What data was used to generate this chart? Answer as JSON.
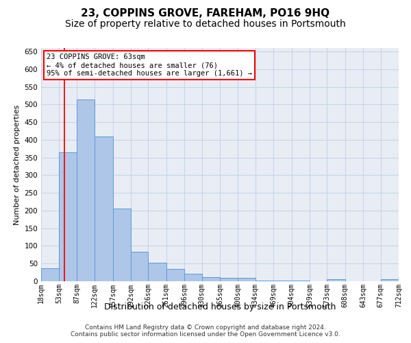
{
  "title": "23, COPPINS GROVE, FAREHAM, PO16 9HQ",
  "subtitle": "Size of property relative to detached houses in Portsmouth",
  "xlabel": "Distribution of detached houses by size in Portsmouth",
  "ylabel": "Number of detached properties",
  "footer_line1": "Contains HM Land Registry data © Crown copyright and database right 2024.",
  "footer_line2": "Contains public sector information licensed under the Open Government Licence v3.0.",
  "annotation_line1": "23 COPPINS GROVE: 63sqm",
  "annotation_line2": "← 4% of detached houses are smaller (76)",
  "annotation_line3": "95% of semi-detached houses are larger (1,661) →",
  "bar_left_edges": [
    18,
    53,
    87,
    122,
    157,
    192,
    226,
    261,
    296,
    330,
    365,
    400,
    434,
    469,
    504,
    539,
    573,
    608,
    643,
    677
  ],
  "bar_widths": [
    35,
    34,
    35,
    35,
    35,
    34,
    35,
    35,
    34,
    35,
    35,
    34,
    35,
    35,
    35,
    34,
    35,
    35,
    34,
    35
  ],
  "bar_heights": [
    37,
    365,
    515,
    410,
    205,
    83,
    52,
    35,
    22,
    12,
    9,
    9,
    1,
    1,
    1,
    0,
    5,
    0,
    0,
    5
  ],
  "bar_color": "#aec6e8",
  "bar_edge_color": "#5b9bd5",
  "red_line_x": 63,
  "ylim": [
    0,
    660
  ],
  "yticks": [
    0,
    50,
    100,
    150,
    200,
    250,
    300,
    350,
    400,
    450,
    500,
    550,
    600,
    650
  ],
  "xtick_labels": [
    "18sqm",
    "53sqm",
    "87sqm",
    "122sqm",
    "157sqm",
    "192sqm",
    "226sqm",
    "261sqm",
    "296sqm",
    "330sqm",
    "365sqm",
    "400sqm",
    "434sqm",
    "469sqm",
    "504sqm",
    "539sqm",
    "573sqm",
    "608sqm",
    "643sqm",
    "677sqm",
    "712sqm"
  ],
  "xtick_positions": [
    18,
    53,
    87,
    122,
    157,
    192,
    226,
    261,
    296,
    330,
    365,
    400,
    434,
    469,
    504,
    539,
    573,
    608,
    643,
    677,
    712
  ],
  "grid_color": "#c8d4e8",
  "background_color": "#e8edf5",
  "title_fontsize": 11,
  "subtitle_fontsize": 10,
  "ylabel_fontsize": 8,
  "xlabel_fontsize": 9,
  "tick_fontsize": 7,
  "annotation_fontsize": 7.5,
  "footer_fontsize": 6.5
}
